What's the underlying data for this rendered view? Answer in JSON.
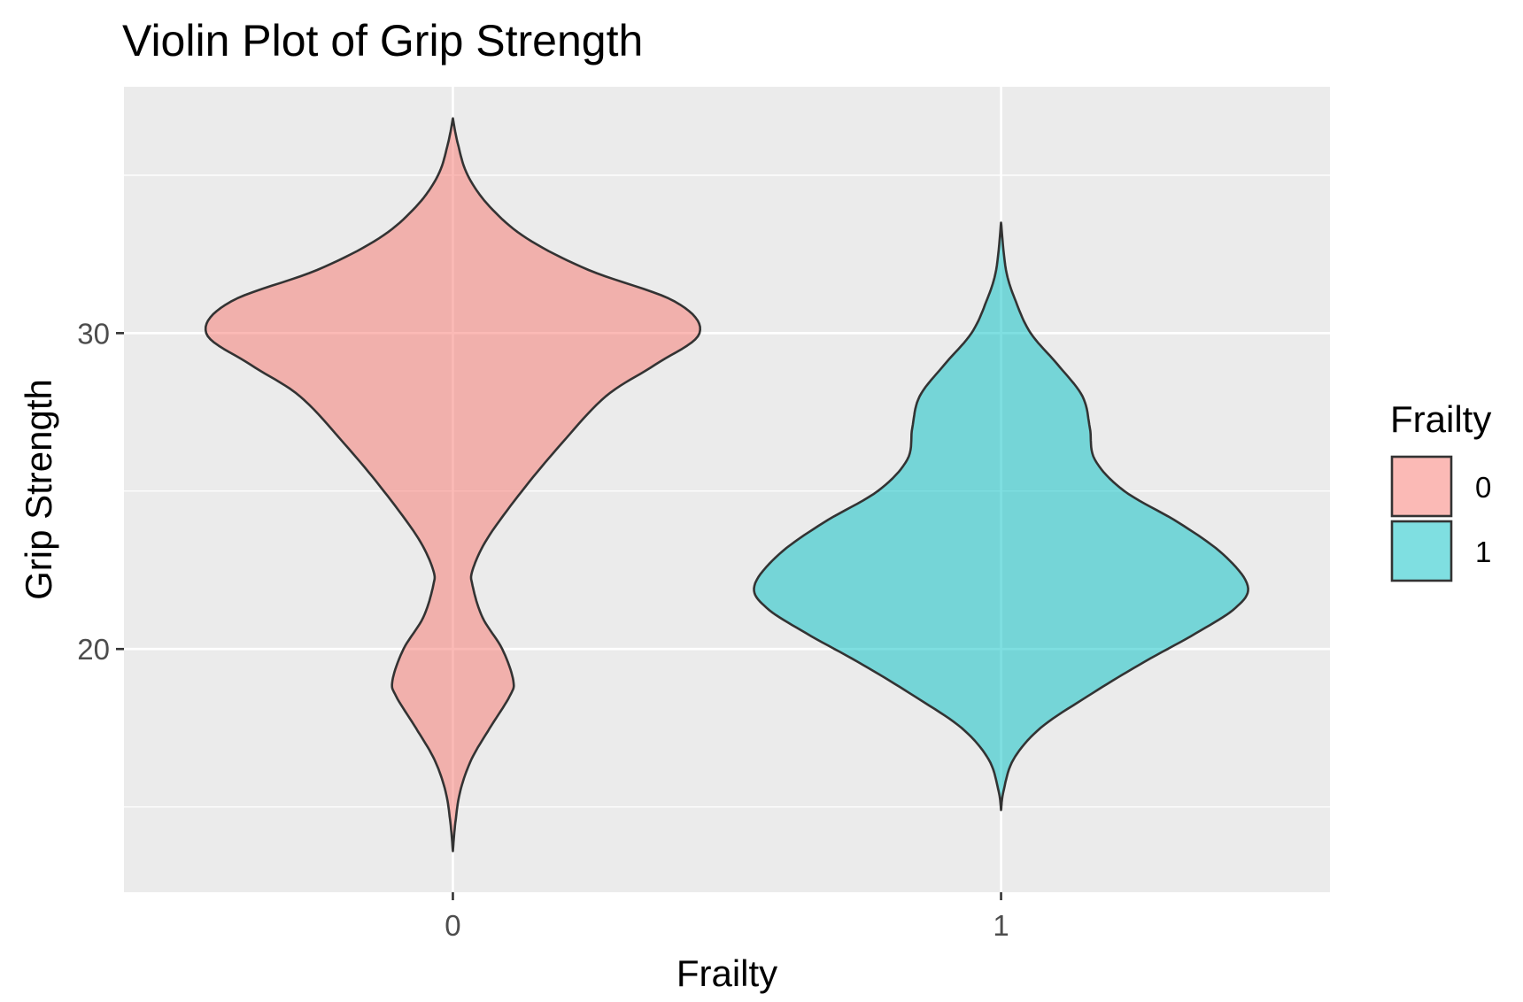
{
  "chart_data": {
    "type": "violin",
    "title": "Violin Plot of Grip Strength",
    "xlabel": "Frailty",
    "ylabel": "Grip Strength",
    "categories": [
      "0",
      "1"
    ],
    "y_ticks": [
      20,
      30
    ],
    "ylim": [
      12.3,
      37.8
    ],
    "grid": true,
    "legend": {
      "title": "Frailty",
      "placement": "right",
      "entries": [
        {
          "label": "0",
          "color": "#F8766D"
        },
        {
          "label": "1",
          "color": "#00BFC4"
        }
      ]
    },
    "series": [
      {
        "category": "0",
        "color": "#F8766D",
        "y_range": [
          13.6,
          36.8
        ],
        "max_density_at": 30.0,
        "profile": [
          [
            13.6,
            0.0
          ],
          [
            14.5,
            0.01
          ],
          [
            15.5,
            0.03
          ],
          [
            16.5,
            0.075
          ],
          [
            17.5,
            0.15
          ],
          [
            18.5,
            0.23
          ],
          [
            19.0,
            0.245
          ],
          [
            20.0,
            0.2
          ],
          [
            21.0,
            0.12
          ],
          [
            22.0,
            0.08
          ],
          [
            22.5,
            0.08
          ],
          [
            23.5,
            0.14
          ],
          [
            25.0,
            0.28
          ],
          [
            26.5,
            0.44
          ],
          [
            28.0,
            0.62
          ],
          [
            29.0,
            0.82
          ],
          [
            30.0,
            1.0
          ],
          [
            31.0,
            0.9
          ],
          [
            32.0,
            0.55
          ],
          [
            33.0,
            0.3
          ],
          [
            34.0,
            0.15
          ],
          [
            35.0,
            0.06
          ],
          [
            36.0,
            0.02
          ],
          [
            36.8,
            0.0
          ]
        ]
      },
      {
        "category": "1",
        "color": "#00BFC4",
        "y_range": [
          14.9,
          33.5
        ],
        "max_density_at": 22.0,
        "profile": [
          [
            14.9,
            0.0
          ],
          [
            15.5,
            0.01
          ],
          [
            16.5,
            0.05
          ],
          [
            17.5,
            0.16
          ],
          [
            18.5,
            0.35
          ],
          [
            19.5,
            0.56
          ],
          [
            20.5,
            0.79
          ],
          [
            21.3,
            0.95
          ],
          [
            22.0,
            1.0
          ],
          [
            23.0,
            0.9
          ],
          [
            24.0,
            0.72
          ],
          [
            25.0,
            0.5
          ],
          [
            26.0,
            0.38
          ],
          [
            27.0,
            0.36
          ],
          [
            28.0,
            0.33
          ],
          [
            29.0,
            0.23
          ],
          [
            30.0,
            0.12
          ],
          [
            31.0,
            0.06
          ],
          [
            32.0,
            0.02
          ],
          [
            33.5,
            0.0
          ]
        ]
      }
    ]
  }
}
